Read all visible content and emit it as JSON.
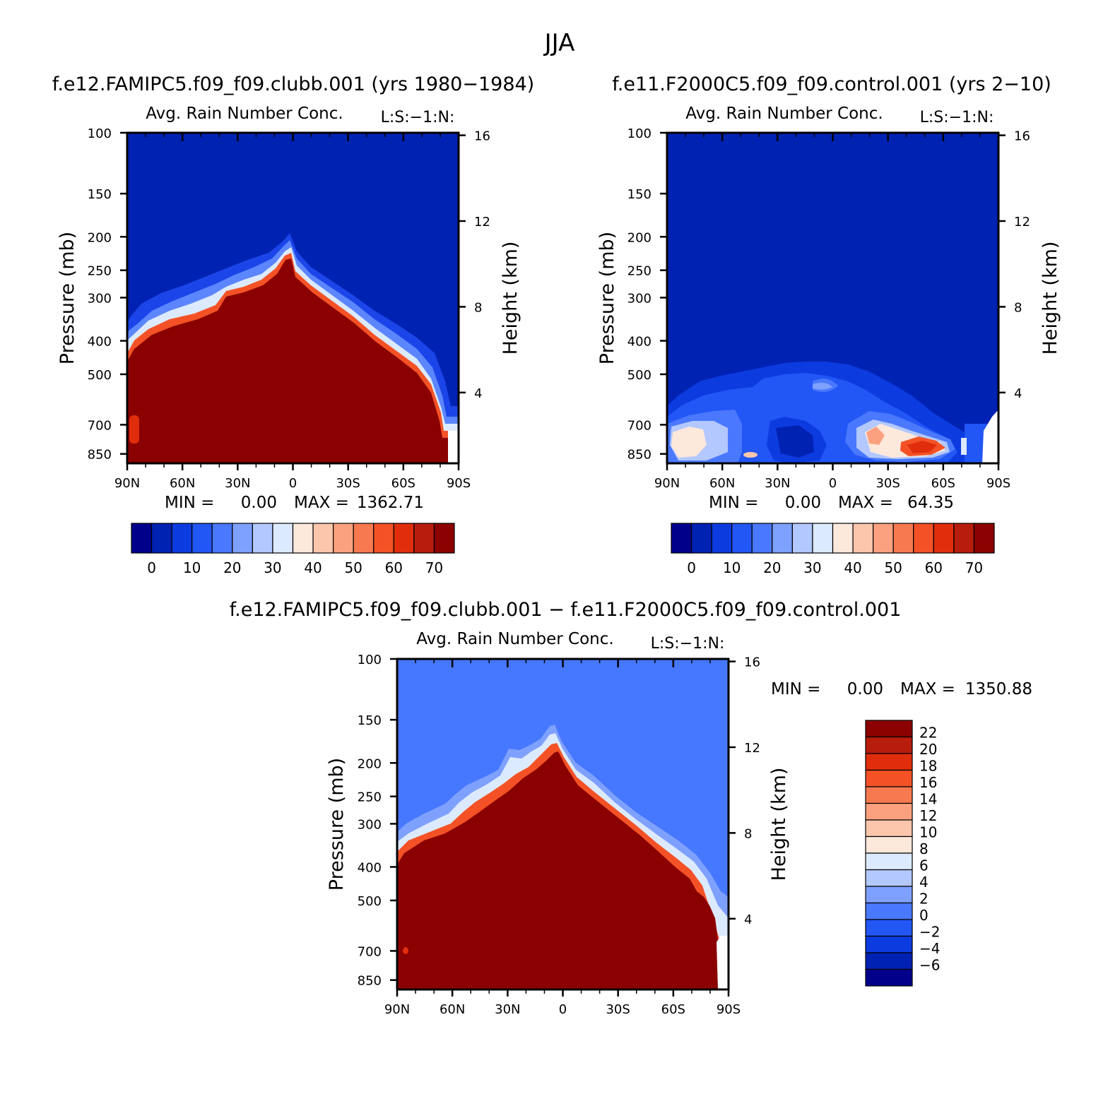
{
  "figure": {
    "title": "JJA",
    "diff_title": "f.e12.FAMIPC5.f09_f09.clubb.001 − f.e11.F2000C5.f09_f09.control.001"
  },
  "colors": {
    "blue_scale": [
      "#00008b",
      "#0022b2",
      "#0c3be0",
      "#2256f5",
      "#4a78ff",
      "#7ea0ff",
      "#b3c8ff",
      "#dceaff"
    ],
    "red_scale": [
      "#fde8dc",
      "#fcc6ad",
      "#fba17f",
      "#f7794f",
      "#f45226",
      "#e02e0c",
      "#b71c0c",
      "#8b0000"
    ],
    "diff_scale": [
      "#00008b",
      "#0022b2",
      "#0c3be0",
      "#2256f5",
      "#4a78ff",
      "#7ea0ff",
      "#b3c8ff",
      "#dceaff",
      "#fde8dc",
      "#fcc6ad",
      "#fba17f",
      "#f7794f",
      "#f45226",
      "#e02e0c",
      "#b71c0c",
      "#8b0000"
    ]
  },
  "chart_data": [
    {
      "type": "heatmap",
      "case_title": "f.e12.FAMIPC5.f09_f09.clubb.001 (yrs 1980−1984)",
      "subtitle": "Avg. Rain Number Conc.",
      "units_label": "L:S:−1:N:",
      "xlabel": "",
      "ylabel": "Pressure (mb)",
      "ylabel_right": "Height (km)",
      "x_ticks": [
        "90N",
        "60N",
        "30N",
        "0",
        "30S",
        "60S",
        "90S"
      ],
      "y_ticks": [
        "100",
        "150",
        "200",
        "250",
        "300",
        "400",
        "500",
        "700",
        "850"
      ],
      "y_right_ticks": [
        "16",
        "12",
        "8",
        "4"
      ],
      "min_label": "MIN =",
      "min_value": "0.00",
      "max_label": "MAX =",
      "max_value": "1362.71",
      "colorbar_ticks": [
        "0",
        "10",
        "20",
        "30",
        "40",
        "50",
        "60",
        "70"
      ],
      "field_top_pressure": [
        480,
        470,
        420,
        380,
        340,
        300,
        290,
        270,
        250,
        240,
        220,
        240,
        290,
        330,
        380,
        460,
        520,
        700
      ],
      "field_lat": [
        90,
        80,
        70,
        60,
        50,
        40,
        30,
        20,
        10,
        0,
        -10,
        -20,
        -30,
        -40,
        -50,
        -60,
        -70,
        -80
      ]
    },
    {
      "type": "heatmap",
      "case_title": "f.e11.F2000C5.f09_f09.control.001 (yrs 2−10)",
      "subtitle": "Avg. Rain Number Conc.",
      "units_label": "L:S:−1:N:",
      "xlabel": "",
      "ylabel": "Pressure (mb)",
      "ylabel_right": "Height (km)",
      "x_ticks": [
        "90N",
        "60N",
        "30N",
        "0",
        "30S",
        "60S",
        "90S"
      ],
      "y_ticks": [
        "100",
        "150",
        "200",
        "250",
        "300",
        "400",
        "500",
        "700",
        "850"
      ],
      "y_right_ticks": [
        "16",
        "12",
        "8",
        "4"
      ],
      "min_label": "MIN =",
      "min_value": "0.00",
      "max_label": "MAX =",
      "max_value": "64.35",
      "colorbar_ticks": [
        "0",
        "10",
        "20",
        "30",
        "40",
        "50",
        "60",
        "70"
      ]
    },
    {
      "type": "heatmap",
      "case_title": "",
      "subtitle": "Avg. Rain Number Conc.",
      "units_label": "L:S:−1:N:",
      "xlabel": "",
      "ylabel": "Pressure (mb)",
      "ylabel_right": "Height (km)",
      "x_ticks": [
        "90N",
        "60N",
        "30N",
        "0",
        "30S",
        "60S",
        "90S"
      ],
      "y_ticks": [
        "100",
        "150",
        "200",
        "250",
        "300",
        "400",
        "500",
        "700",
        "850"
      ],
      "y_right_ticks": [
        "16",
        "12",
        "8",
        "4"
      ],
      "min_label": "MIN =",
      "min_value": "0.00",
      "max_label": "MAX =",
      "max_value": "1350.88",
      "colorbar_ticks": [
        "22",
        "20",
        "18",
        "16",
        "14",
        "12",
        "10",
        "8",
        "6",
        "4",
        "2",
        "0",
        "−2",
        "−4",
        "−6"
      ]
    }
  ]
}
